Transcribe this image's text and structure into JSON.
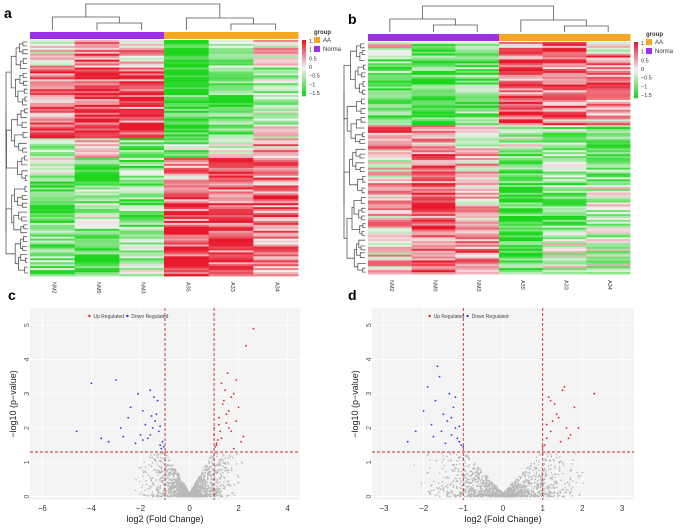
{
  "panels": {
    "a": {
      "label": "a",
      "samples": [
        "NM2",
        "NM0",
        "NM3",
        "A35",
        "A33",
        "A34"
      ],
      "groups": [
        {
          "name": "AA",
          "color": "#F5A623"
        },
        {
          "name": "Norma",
          "color": "#9B30E6"
        }
      ],
      "sample_groups": [
        "Norma",
        "Norma",
        "Norma",
        "AA",
        "AA",
        "AA"
      ],
      "legend_title": "group",
      "scale_ticks": [
        "1.5",
        "1",
        "0.5",
        "0",
        "−0.5",
        "−1",
        "−1.5"
      ]
    },
    "b": {
      "label": "b",
      "samples": [
        "NM2",
        "NM0",
        "NM3",
        "A35",
        "A33",
        "A34"
      ],
      "groups": [
        {
          "name": "AA",
          "color": "#F5A623"
        },
        {
          "name": "Norma",
          "color": "#9B30E6"
        }
      ],
      "sample_groups": [
        "Norma",
        "Norma",
        "Norma",
        "AA",
        "AA",
        "AA"
      ],
      "legend_title": "group",
      "scale_ticks": [
        "1.5",
        "1",
        "0.5",
        "0",
        "−0.5",
        "−1",
        "−1.5"
      ]
    },
    "c": {
      "label": "c",
      "xlabel": "log2 (Fold Change)",
      "ylabel": "−log10 (p−value)",
      "legend": [
        "Up Regulated",
        "Down Regulated"
      ],
      "xticks": [
        "−6",
        "−4",
        "−2",
        "0",
        "2",
        "4"
      ],
      "yticks": [
        "0",
        "1",
        "2",
        "3",
        "4",
        "5"
      ]
    },
    "d": {
      "label": "d",
      "xlabel": "log2 (Fold Change)",
      "ylabel": "−log10 (p−value)",
      "legend": [
        "Up Regulated",
        "Down Regulated"
      ],
      "xticks": [
        "−3",
        "−2",
        "−1",
        "0",
        "1",
        "2",
        "3"
      ],
      "yticks": [
        "0",
        "1",
        "2",
        "3",
        "4",
        "5"
      ]
    }
  },
  "colors": {
    "heat_high": "#E8192C",
    "heat_mid": "#F2F2F2",
    "heat_low": "#1ED61E",
    "up": "#E02020",
    "down": "#2E35D9",
    "ns": "#B8B8B8",
    "threshold": "#C62828"
  },
  "chart_data": [
    {
      "type": "heatmap",
      "title": "a",
      "columns": [
        "NM2",
        "NM0",
        "NM3",
        "A35",
        "A33",
        "A34"
      ],
      "column_groups": [
        "Norma",
        "Norma",
        "Norma",
        "AA",
        "AA",
        "AA"
      ],
      "value_range": [
        -1.5,
        1.5
      ],
      "row_blocks": [
        {
          "fraction": 0.12,
          "means": [
            0.2,
            0.8,
            0.4,
            -1.3,
            -0.5,
            0.2
          ]
        },
        {
          "fraction": 0.22,
          "means": [
            0.9,
            1.2,
            1.0,
            -1.3,
            -1.1,
            -0.5
          ]
        },
        {
          "fraction": 0.08,
          "means": [
            0.9,
            1.3,
            1.0,
            -1.2,
            -1.0,
            -0.2
          ]
        },
        {
          "fraction": 0.08,
          "means": [
            -0.6,
            0.2,
            -0.8,
            -0.6,
            0.0,
            0.5
          ]
        },
        {
          "fraction": 0.1,
          "means": [
            -0.3,
            -1.2,
            -0.8,
            0.6,
            1.1,
            0.9
          ]
        },
        {
          "fraction": 0.2,
          "means": [
            -1.0,
            -0.6,
            -0.8,
            1.0,
            0.7,
            0.8
          ]
        },
        {
          "fraction": 0.2,
          "means": [
            -0.7,
            -1.1,
            -0.5,
            1.2,
            0.9,
            0.6
          ]
        }
      ]
    },
    {
      "type": "heatmap",
      "title": "b",
      "columns": [
        "NM2",
        "NM0",
        "NM3",
        "A35",
        "A33",
        "A34"
      ],
      "column_groups": [
        "Norma",
        "Norma",
        "Norma",
        "AA",
        "AA",
        "AA"
      ],
      "value_range": [
        -1.5,
        1.5
      ],
      "row_blocks": [
        {
          "fraction": 0.06,
          "means": [
            0.1,
            -0.9,
            -0.5,
            0.6,
            0.9,
            0.1
          ]
        },
        {
          "fraction": 0.18,
          "means": [
            -0.9,
            -1.1,
            -0.9,
            0.9,
            0.8,
            0.8
          ]
        },
        {
          "fraction": 0.12,
          "means": [
            -0.8,
            -1.2,
            -1.0,
            1.2,
            0.9,
            0.4
          ]
        },
        {
          "fraction": 0.1,
          "means": [
            0.8,
            0.6,
            0.1,
            -0.3,
            -0.6,
            -0.9
          ]
        },
        {
          "fraction": 0.14,
          "means": [
            0.1,
            1.0,
            0.3,
            -1.1,
            -0.6,
            -0.6
          ]
        },
        {
          "fraction": 0.22,
          "means": [
            0.4,
            1.0,
            0.3,
            -1.2,
            -0.8,
            -0.3
          ]
        },
        {
          "fraction": 0.18,
          "means": [
            0.3,
            0.9,
            0.7,
            -1.0,
            -0.2,
            -0.3
          ]
        }
      ]
    },
    {
      "type": "scatter",
      "title": "c",
      "xlabel": "log2 (Fold Change)",
      "ylabel": "−log10 (p−value)",
      "xlim": [
        -6.5,
        4.5
      ],
      "ylim": [
        -0.1,
        5.5
      ],
      "fc_threshold": [
        -1,
        1
      ],
      "p_threshold_y": 1.3,
      "series": [
        {
          "name": "Up Regulated",
          "x": [
            1.0,
            1.2,
            1.5,
            1.8,
            1.1,
            1.6,
            2.0,
            1.3,
            1.9,
            1.4,
            2.3,
            1.7,
            1.2,
            1.05,
            1.45,
            2.1,
            1.6,
            1.25,
            1.9,
            1.15,
            1.35,
            2.6,
            1.8,
            1.55,
            1.0,
            1.7,
            2.2,
            1.3,
            1.1,
            1.5
          ],
          "y": [
            1.8,
            2.1,
            2.4,
            3.0,
            1.5,
            2.0,
            2.6,
            1.7,
            3.4,
            2.8,
            4.4,
            1.9,
            2.3,
            1.45,
            3.1,
            1.6,
            2.5,
            1.9,
            2.2,
            1.65,
            2.7,
            4.9,
            1.4,
            3.6,
            2.0,
            2.9,
            1.75,
            3.3,
            1.55,
            2.15
          ]
        },
        {
          "name": "Down Regulated",
          "x": [
            -1.1,
            -1.4,
            -2.0,
            -2.8,
            -1.6,
            -1.2,
            -3.6,
            -1.9,
            -1.3,
            -4.6,
            -2.5,
            -1.05,
            -1.7,
            -2.2,
            -1.5,
            -3.0,
            -1.25,
            -1.8,
            -2.4,
            -1.15,
            -1.35,
            -3.3,
            -1.6,
            -2.1,
            -1.45,
            -4.0,
            -1.9,
            -1.2,
            -2.7,
            -1.55
          ],
          "y": [
            1.6,
            2.2,
            1.8,
            2.0,
            3.1,
            1.5,
            1.7,
            2.5,
            2.8,
            1.9,
            2.3,
            1.45,
            1.7,
            1.55,
            2.0,
            3.4,
            1.9,
            2.1,
            2.6,
            1.4,
            2.4,
            1.6,
            1.8,
            3.0,
            2.9,
            3.3,
            1.65,
            2.05,
            1.75,
            2.35
          ]
        }
      ]
    },
    {
      "type": "scatter",
      "title": "d",
      "xlabel": "log2 (Fold Change)",
      "ylabel": "−log10 (p−value)",
      "xlim": [
        -3.3,
        3.3
      ],
      "ylim": [
        -0.1,
        5.5
      ],
      "fc_threshold": [
        -1,
        1
      ],
      "p_threshold_y": 1.3,
      "series": [
        {
          "name": "Up Regulated",
          "x": [
            1.05,
            1.2,
            1.4,
            1.3,
            1.6,
            1.1,
            1.5,
            1.8,
            1.25,
            1.7,
            1.15,
            1.45,
            2.3,
            1.35,
            1.9,
            1.0,
            1.55,
            1.65,
            1.2,
            1.1
          ],
          "y": [
            1.5,
            1.9,
            2.3,
            2.7,
            2.0,
            1.7,
            3.1,
            2.6,
            2.2,
            1.8,
            2.9,
            1.6,
            3.0,
            2.4,
            2.0,
            1.45,
            3.2,
            1.7,
            2.8,
            2.1
          ]
        },
        {
          "name": "Down Regulated",
          "x": [
            -1.05,
            -1.2,
            -1.5,
            -1.3,
            -1.7,
            -1.1,
            -1.9,
            -1.4,
            -1.6,
            -2.2,
            -1.25,
            -1.8,
            -1.15,
            -1.35,
            -2.0,
            -1.45,
            -1.55,
            -1.0,
            -2.4,
            -1.65,
            -1.3,
            -1.75,
            -1.2,
            -1.1
          ],
          "y": [
            1.5,
            2.0,
            2.4,
            1.8,
            2.8,
            1.6,
            3.2,
            2.2,
            3.5,
            1.9,
            2.6,
            2.1,
            1.7,
            3.0,
            2.5,
            1.55,
            1.9,
            1.45,
            1.6,
            3.8,
            2.3,
            1.75,
            2.9,
            2.05
          ]
        }
      ]
    }
  ]
}
